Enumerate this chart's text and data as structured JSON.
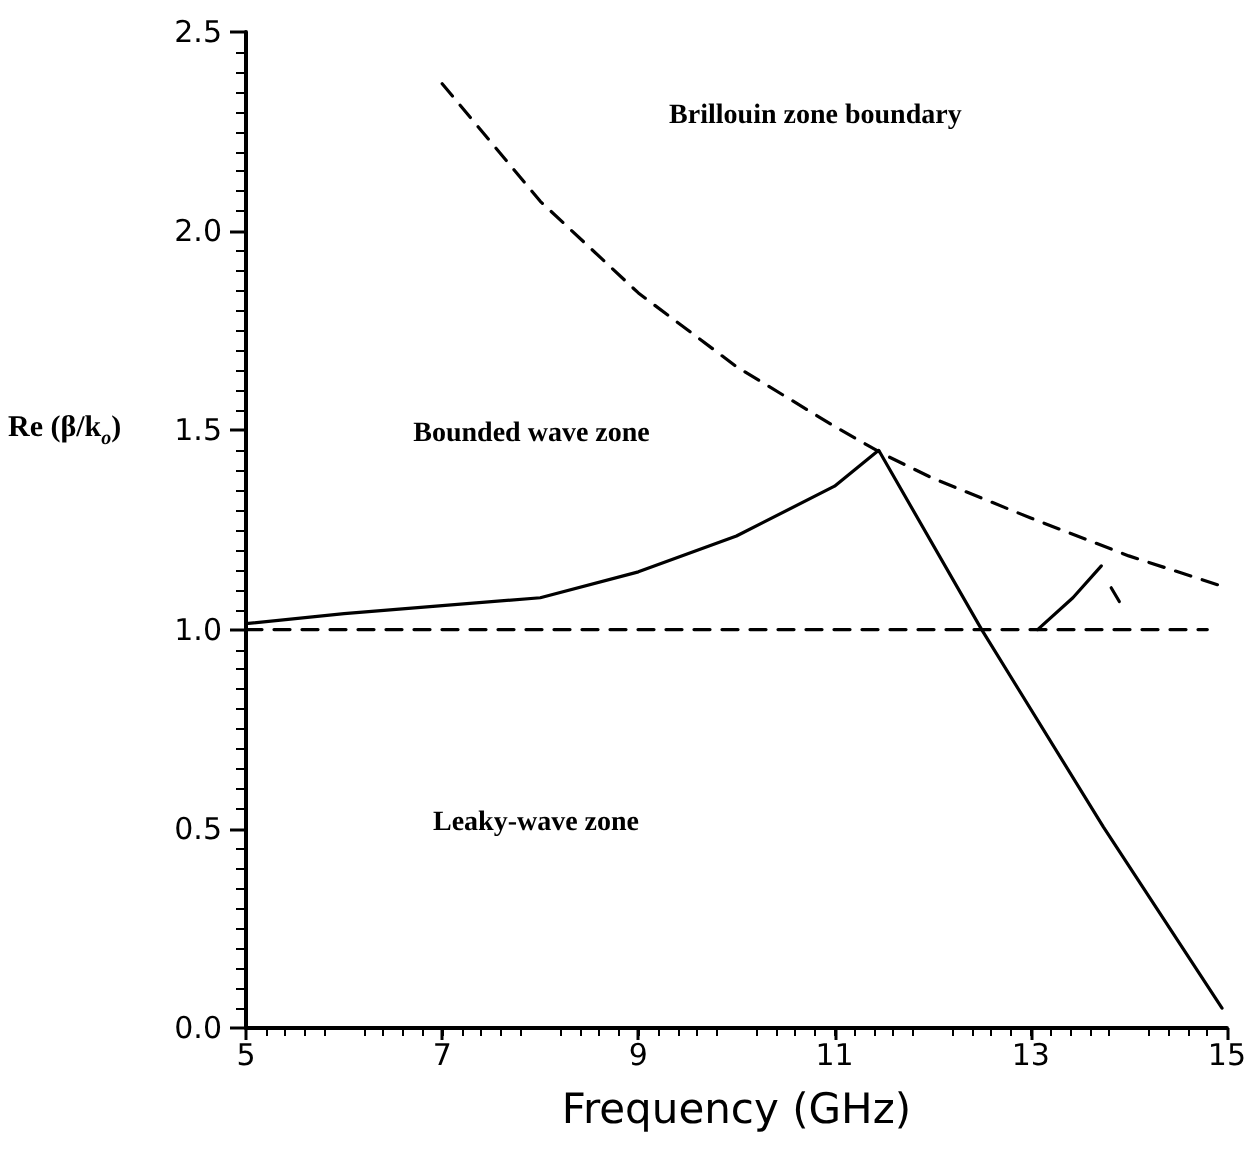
{
  "chart_data": {
    "type": "line",
    "xlabel": "Frequency (GHz)",
    "ylabel": "Re (β/k$_{o}$)",
    "xlim": [
      5,
      15
    ],
    "xticks": [
      5,
      7,
      9,
      11,
      13,
      15
    ],
    "ylim": [
      0,
      2.5
    ],
    "yticks": [
      {
        "value": 0,
        "label": "0.0"
      },
      {
        "value": 0.5,
        "label": "0.5"
      },
      {
        "value": 1,
        "label": "1.0"
      },
      {
        "value": 1.5,
        "label": "1.5"
      },
      {
        "value": 2,
        "label": "2.0"
      },
      {
        "value": 2.5,
        "label": "2.5"
      }
    ],
    "grid": false,
    "marker": "none",
    "annotations": [
      "Brillouin zone boundary",
      "Bounded wave zone",
      "Leaky-wave zone"
    ],
    "series": [
      {
        "color": "#000000",
        "line_style": "dashed",
        "x": [
          7,
          8,
          9,
          10,
          11,
          11.5,
          12,
          13,
          14,
          15
        ],
        "values": [
          2.37,
          2.075,
          1.845,
          1.66,
          1.51,
          1.44,
          1.38,
          1.28,
          1.185,
          1.105
        ]
      },
      {
        "color": "#000000",
        "line_style": "dashed",
        "x": [
          5,
          14.8
        ],
        "values": [
          1,
          1
        ]
      },
      {
        "color": "#000000",
        "line_style": "solid",
        "x": [
          5,
          6,
          7,
          8,
          9,
          10,
          11,
          11.45,
          12.5,
          13.74,
          14.95
        ],
        "values": [
          1.015,
          1.04,
          1.06,
          1.08,
          1.145,
          1.235,
          1.36,
          1.45,
          1.0,
          0.505,
          0.05
        ]
      },
      {
        "color": "#000000",
        "line_style": "solid",
        "x": [
          13.07,
          13.43,
          13.72
        ],
        "values": [
          1.0,
          1.08,
          1.16
        ]
      },
      {
        "color": "#000000",
        "line_style": "dashed",
        "x": [
          13.82,
          13.94
        ],
        "values": [
          1.105,
          1.055
        ]
      }
    ]
  }
}
